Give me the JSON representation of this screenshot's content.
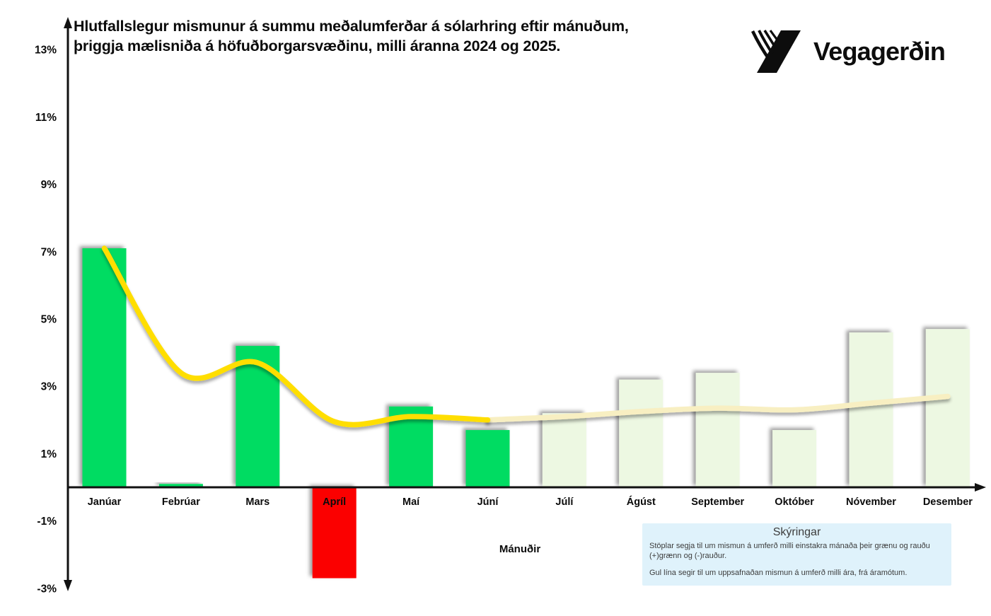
{
  "title": "Hlutfallslegur mismunur á summu meðalumferðar á sólarhring eftir mánuðum, þriggja mælisniða á höfuðborgarsvæðinu, milli áranna 2024 og 2025.",
  "logo": {
    "text": "Vegagerðin"
  },
  "axis": {
    "x_label": "Mánuðir"
  },
  "legend": {
    "title": "Skýringar",
    "line1": "Stöplar segja til um mismun á umferð milli einstakra mánaða  þeir grænu og rauðu (+)grænn og (-)rauður.",
    "line2": "Gul lína segir til um uppsafnaðan mismun á umferð milli ára, frá áramótum."
  },
  "colors": {
    "bar_green": "#02DC62",
    "bar_pale_green": "#EDF8E2",
    "bar_red": "#FB0000",
    "line_yellow": "#FFDE00",
    "line_cream": "#F8EFC2",
    "legend_bg": "#DFF2FB",
    "text": "#0b0b0b",
    "axis": "#111111"
  },
  "chart_data": {
    "type": "bar",
    "title": "Hlutfallslegur mismunur á summu meðalumferðar á sólarhring eftir mánuðum, þriggja mælisniða á höfuðborgarsvæðinu, milli áranna 2024 og 2025.",
    "categories": [
      "Janúar",
      "Febrúar",
      "Mars",
      "Apríl",
      "Maí",
      "Júní",
      "Júlí",
      "Ágúst",
      "September",
      "Október",
      "Nóvember",
      "Desember"
    ],
    "series": [
      {
        "name": "Mismunur á umferð milli einstakra mánaða ((+)grænn og (-)rauður)",
        "type": "bar",
        "values": [
          7.1,
          0.1,
          4.2,
          -2.7,
          2.4,
          1.7,
          2.2,
          3.2,
          3.4,
          1.7,
          4.6,
          4.7
        ],
        "bar_styles": [
          "green",
          "green",
          "green",
          "red",
          "green",
          "green",
          "pale",
          "pale",
          "pale",
          "pale",
          "pale",
          "pale"
        ]
      },
      {
        "name": "Uppsafnaður mismunur á umferð milli ára, frá áramótum (gul lína)",
        "type": "line",
        "values": [
          7.1,
          3.4,
          3.7,
          1.95,
          2.1,
          2.0,
          2.1,
          2.25,
          2.35,
          2.3,
          2.5,
          2.7
        ],
        "solid_until_index": 5
      }
    ],
    "xlabel": "Mánuðir",
    "ylabel": "",
    "ylim": [
      -3,
      13.5
    ],
    "y_ticks": [
      13,
      11,
      9,
      7,
      5,
      3,
      1,
      -1,
      -3
    ],
    "y_tick_suffix": "%",
    "grid": false,
    "legend_position": "bottom-right-box"
  }
}
